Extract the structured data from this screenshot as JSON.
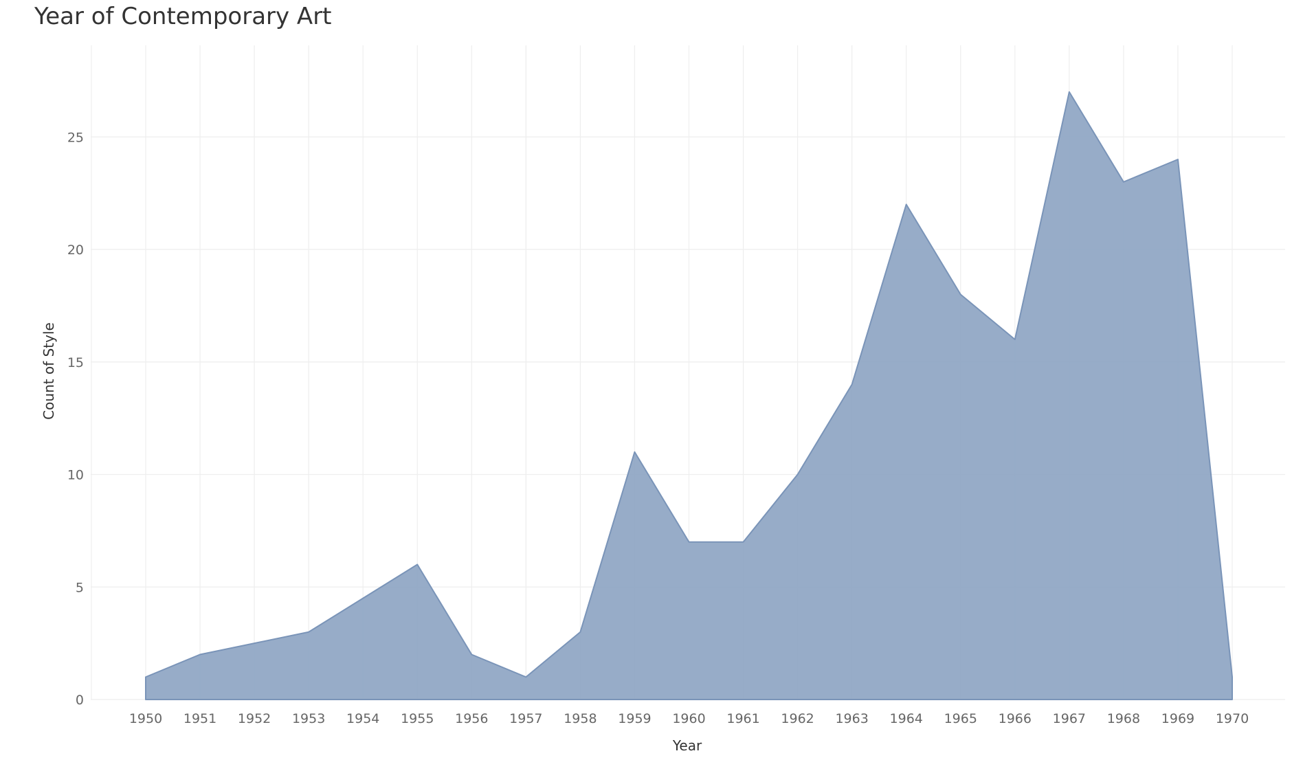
{
  "chart_data": {
    "type": "area",
    "title": "Year of Contemporary Art",
    "xlabel": "Year",
    "ylabel": "Count of Style",
    "x": [
      "1950",
      "1951",
      "1952",
      "1953",
      "1954",
      "1955",
      "1956",
      "1957",
      "1958",
      "1959",
      "1960",
      "1961",
      "1962",
      "1963",
      "1964",
      "1965",
      "1966",
      "1967",
      "1968",
      "1969",
      "1970"
    ],
    "values": [
      1,
      2,
      2.5,
      3,
      4.5,
      6,
      2,
      1,
      3,
      11,
      7,
      7,
      10,
      14,
      22,
      18,
      16,
      27,
      23,
      24,
      1
    ],
    "yticks": [
      "0",
      "5",
      "10",
      "15",
      "20",
      "25"
    ],
    "ytick_values": [
      0,
      5,
      10,
      15,
      20,
      25
    ],
    "ylim": [
      0,
      29
    ],
    "grid": true,
    "fill_color": "#8ea5c3",
    "line_color": "#7a94b8"
  }
}
